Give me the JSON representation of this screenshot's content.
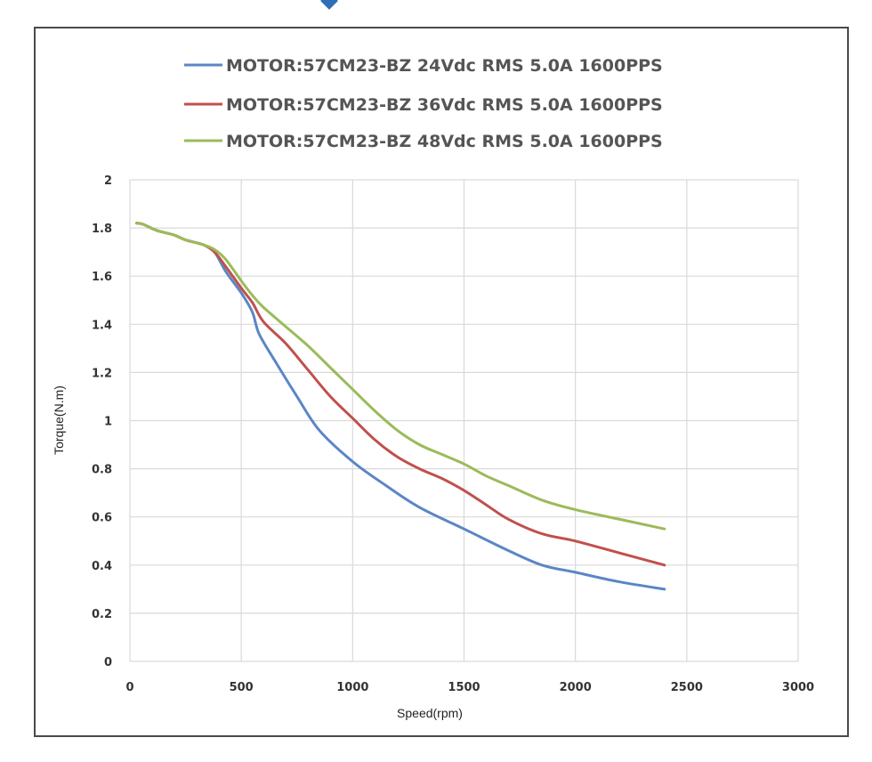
{
  "chart_data": {
    "type": "line",
    "xlabel": "Speed(rpm)",
    "ylabel": "Torque(N.m)",
    "xlim": [
      0,
      3000
    ],
    "ylim": [
      0,
      2
    ],
    "xticks": [
      "0",
      "500",
      "1000",
      "1500",
      "2000",
      "2500",
      "3000"
    ],
    "yticks": [
      "0",
      "0.2",
      "0.4",
      "0.6",
      "0.8",
      "1",
      "1.2",
      "1.4",
      "1.6",
      "1.8",
      "2"
    ],
    "grid": true,
    "legend_position": "top",
    "series": [
      {
        "name": "MOTOR:57CM23-BZ 24Vdc RMS 5.0A 1600PPS",
        "color": "#5b86c5",
        "points": [
          [
            30,
            1.82
          ],
          [
            60,
            1.815
          ],
          [
            120,
            1.79
          ],
          [
            200,
            1.77
          ],
          [
            250,
            1.75
          ],
          [
            330,
            1.73
          ],
          [
            380,
            1.7
          ],
          [
            430,
            1.62
          ],
          [
            500,
            1.53
          ],
          [
            550,
            1.45
          ],
          [
            580,
            1.36
          ],
          [
            650,
            1.25
          ],
          [
            750,
            1.1
          ],
          [
            850,
            0.96
          ],
          [
            1000,
            0.83
          ],
          [
            1150,
            0.73
          ],
          [
            1300,
            0.64
          ],
          [
            1500,
            0.55
          ],
          [
            1700,
            0.46
          ],
          [
            1850,
            0.4
          ],
          [
            2000,
            0.37
          ],
          [
            2200,
            0.33
          ],
          [
            2400,
            0.3
          ]
        ]
      },
      {
        "name": "MOTOR:57CM23-BZ 36Vdc RMS 5.0A 1600PPS",
        "color": "#c0504d",
        "points": [
          [
            30,
            1.82
          ],
          [
            60,
            1.815
          ],
          [
            120,
            1.79
          ],
          [
            200,
            1.77
          ],
          [
            250,
            1.75
          ],
          [
            330,
            1.73
          ],
          [
            380,
            1.7
          ],
          [
            430,
            1.64
          ],
          [
            500,
            1.55
          ],
          [
            550,
            1.49
          ],
          [
            600,
            1.41
          ],
          [
            700,
            1.32
          ],
          [
            800,
            1.21
          ],
          [
            900,
            1.1
          ],
          [
            1000,
            1.01
          ],
          [
            1100,
            0.92
          ],
          [
            1200,
            0.85
          ],
          [
            1300,
            0.8
          ],
          [
            1400,
            0.76
          ],
          [
            1500,
            0.71
          ],
          [
            1600,
            0.65
          ],
          [
            1700,
            0.59
          ],
          [
            1850,
            0.53
          ],
          [
            2000,
            0.5
          ],
          [
            2200,
            0.45
          ],
          [
            2400,
            0.4
          ]
        ]
      },
      {
        "name": "MOTOR:57CM23-BZ 48Vdc RMS 5.0A 1600PPS",
        "color": "#9bbb59",
        "points": [
          [
            30,
            1.82
          ],
          [
            60,
            1.815
          ],
          [
            120,
            1.79
          ],
          [
            200,
            1.77
          ],
          [
            250,
            1.75
          ],
          [
            330,
            1.73
          ],
          [
            380,
            1.71
          ],
          [
            430,
            1.67
          ],
          [
            500,
            1.58
          ],
          [
            550,
            1.52
          ],
          [
            600,
            1.47
          ],
          [
            700,
            1.39
          ],
          [
            800,
            1.31
          ],
          [
            900,
            1.22
          ],
          [
            1000,
            1.13
          ],
          [
            1100,
            1.04
          ],
          [
            1200,
            0.96
          ],
          [
            1300,
            0.9
          ],
          [
            1400,
            0.86
          ],
          [
            1500,
            0.82
          ],
          [
            1600,
            0.77
          ],
          [
            1700,
            0.73
          ],
          [
            1850,
            0.67
          ],
          [
            2000,
            0.63
          ],
          [
            2200,
            0.59
          ],
          [
            2400,
            0.55
          ]
        ]
      }
    ]
  }
}
